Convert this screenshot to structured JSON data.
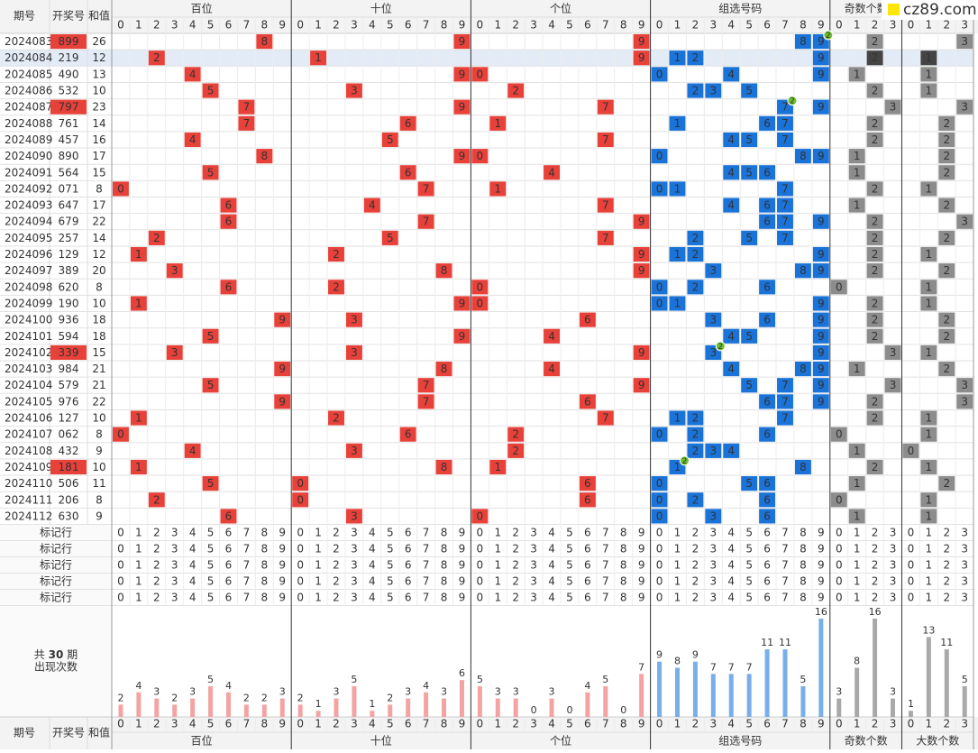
{
  "headers": {
    "issue": "期号",
    "number": "开奖号",
    "sum": "和值"
  },
  "sections": [
    "百位",
    "十位",
    "个位",
    "组选号码",
    "奇数个数",
    "大数个数"
  ],
  "digits": [
    0,
    1,
    2,
    3,
    4,
    5,
    6,
    7,
    8,
    9
  ],
  "small_digits": [
    0,
    1,
    2,
    3
  ],
  "logo": "cz89.com",
  "rows": [
    {
      "i": "2024083",
      "n": "899",
      "s": 26,
      "b": 8,
      "t": 9,
      "g": 9,
      "grp": [
        8,
        9
      ],
      "dbl": {
        "d": 9,
        "c": 2
      },
      "odd": 2,
      "big": 3
    },
    {
      "i": "2024084",
      "n": "219",
      "s": 12,
      "b": 2,
      "t": 1,
      "g": 9,
      "grp": [
        1,
        2,
        9
      ],
      "odd": 2,
      "big": 1,
      "selected": true
    },
    {
      "i": "2024085",
      "n": "490",
      "s": 13,
      "b": 4,
      "t": 9,
      "g": 0,
      "grp": [
        0,
        4,
        9
      ],
      "odd": 1,
      "big": 1
    },
    {
      "i": "2024086",
      "n": "532",
      "s": 10,
      "b": 5,
      "t": 3,
      "g": 2,
      "grp": [
        2,
        3,
        5
      ],
      "odd": 2,
      "big": 1
    },
    {
      "i": "2024087",
      "n": "797",
      "s": 23,
      "b": 7,
      "t": 9,
      "g": 7,
      "grp": [
        7,
        9
      ],
      "dbl": {
        "d": 7,
        "c": 2
      },
      "odd": 3,
      "big": 3
    },
    {
      "i": "2024088",
      "n": "761",
      "s": 14,
      "b": 7,
      "t": 6,
      "g": 1,
      "grp": [
        1,
        6,
        7
      ],
      "odd": 2,
      "big": 2
    },
    {
      "i": "2024089",
      "n": "457",
      "s": 16,
      "b": 4,
      "t": 5,
      "g": 7,
      "grp": [
        4,
        5,
        7
      ],
      "odd": 2,
      "big": 2
    },
    {
      "i": "2024090",
      "n": "890",
      "s": 17,
      "b": 8,
      "t": 9,
      "g": 0,
      "grp": [
        0,
        8,
        9
      ],
      "odd": 1,
      "big": 2
    },
    {
      "i": "2024091",
      "n": "564",
      "s": 15,
      "b": 5,
      "t": 6,
      "g": 4,
      "grp": [
        4,
        5,
        6
      ],
      "odd": 1,
      "big": 2
    },
    {
      "i": "2024092",
      "n": "071",
      "s": 8,
      "b": 0,
      "t": 7,
      "g": 1,
      "grp": [
        0,
        1,
        7
      ],
      "odd": 2,
      "big": 1
    },
    {
      "i": "2024093",
      "n": "647",
      "s": 17,
      "b": 6,
      "t": 4,
      "g": 7,
      "grp": [
        4,
        6,
        7
      ],
      "odd": 1,
      "big": 2
    },
    {
      "i": "2024094",
      "n": "679",
      "s": 22,
      "b": 6,
      "t": 7,
      "g": 9,
      "grp": [
        6,
        7,
        9
      ],
      "odd": 2,
      "big": 3
    },
    {
      "i": "2024095",
      "n": "257",
      "s": 14,
      "b": 2,
      "t": 5,
      "g": 7,
      "grp": [
        2,
        5,
        7
      ],
      "odd": 2,
      "big": 2
    },
    {
      "i": "2024096",
      "n": "129",
      "s": 12,
      "b": 1,
      "t": 2,
      "g": 9,
      "grp": [
        1,
        2,
        9
      ],
      "odd": 2,
      "big": 1
    },
    {
      "i": "2024097",
      "n": "389",
      "s": 20,
      "b": 3,
      "t": 8,
      "g": 9,
      "grp": [
        3,
        8,
        9
      ],
      "odd": 2,
      "big": 2
    },
    {
      "i": "2024098",
      "n": "620",
      "s": 8,
      "b": 6,
      "t": 2,
      "g": 0,
      "grp": [
        0,
        2,
        6
      ],
      "odd": 0,
      "big": 1
    },
    {
      "i": "2024099",
      "n": "190",
      "s": 10,
      "b": 1,
      "t": 9,
      "g": 0,
      "grp": [
        0,
        1,
        9
      ],
      "odd": 2,
      "big": 1
    },
    {
      "i": "2024100",
      "n": "936",
      "s": 18,
      "b": 9,
      "t": 3,
      "g": 6,
      "grp": [
        3,
        6,
        9
      ],
      "odd": 2,
      "big": 2
    },
    {
      "i": "2024101",
      "n": "594",
      "s": 18,
      "b": 5,
      "t": 9,
      "g": 4,
      "grp": [
        4,
        5,
        9
      ],
      "odd": 2,
      "big": 2
    },
    {
      "i": "2024102",
      "n": "339",
      "s": 15,
      "b": 3,
      "t": 3,
      "g": 9,
      "grp": [
        3,
        9
      ],
      "dbl": {
        "d": 3,
        "c": 2
      },
      "odd": 3,
      "big": 1
    },
    {
      "i": "2024103",
      "n": "984",
      "s": 21,
      "b": 9,
      "t": 8,
      "g": 4,
      "grp": [
        4,
        8,
        9
      ],
      "odd": 1,
      "big": 2
    },
    {
      "i": "2024104",
      "n": "579",
      "s": 21,
      "b": 5,
      "t": 7,
      "g": 9,
      "grp": [
        5,
        7,
        9
      ],
      "odd": 3,
      "big": 3
    },
    {
      "i": "2024105",
      "n": "976",
      "s": 22,
      "b": 9,
      "t": 7,
      "g": 6,
      "grp": [
        6,
        7,
        9
      ],
      "odd": 2,
      "big": 3
    },
    {
      "i": "2024106",
      "n": "127",
      "s": 10,
      "b": 1,
      "t": 2,
      "g": 7,
      "grp": [
        1,
        2,
        7
      ],
      "odd": 2,
      "big": 1
    },
    {
      "i": "2024107",
      "n": "062",
      "s": 8,
      "b": 0,
      "t": 6,
      "g": 2,
      "grp": [
        0,
        2,
        6
      ],
      "odd": 0,
      "big": 1
    },
    {
      "i": "2024108",
      "n": "432",
      "s": 9,
      "b": 4,
      "t": 3,
      "g": 2,
      "grp": [
        2,
        3,
        4
      ],
      "odd": 1,
      "big": 0
    },
    {
      "i": "2024109",
      "n": "181",
      "s": 10,
      "b": 1,
      "t": 8,
      "g": 1,
      "grp": [
        1,
        8
      ],
      "dbl": {
        "d": 1,
        "c": 2
      },
      "odd": 2,
      "big": 1
    },
    {
      "i": "2024110",
      "n": "506",
      "s": 11,
      "b": 5,
      "t": 0,
      "g": 6,
      "grp": [
        0,
        5,
        6
      ],
      "odd": 1,
      "big": 2
    },
    {
      "i": "2024111",
      "n": "206",
      "s": 8,
      "b": 2,
      "t": 0,
      "g": 6,
      "grp": [
        0,
        2,
        6
      ],
      "odd": 0,
      "big": 1
    },
    {
      "i": "2024112",
      "n": "630",
      "s": 9,
      "b": 6,
      "t": 3,
      "g": 0,
      "grp": [
        0,
        3,
        6
      ],
      "odd": 1,
      "big": 1
    }
  ],
  "marker_rows": [
    "标记行",
    "标记行",
    "标记行",
    "标记行",
    "标记行"
  ],
  "stats_label": {
    "pre": "共",
    "periods": 30,
    "post": "期",
    "line2": "出现次数"
  },
  "stats": [
    [
      2,
      4,
      3,
      2,
      3,
      5,
      4,
      2,
      2,
      3
    ],
    [
      2,
      1,
      3,
      5,
      1,
      2,
      3,
      4,
      3,
      6
    ],
    [
      5,
      3,
      3,
      0,
      3,
      0,
      4,
      5,
      0,
      7
    ],
    [
      9,
      8,
      9,
      7,
      7,
      7,
      11,
      11,
      5,
      16
    ],
    [
      3,
      8,
      16,
      3
    ],
    [
      1,
      13,
      11,
      5
    ]
  ]
}
